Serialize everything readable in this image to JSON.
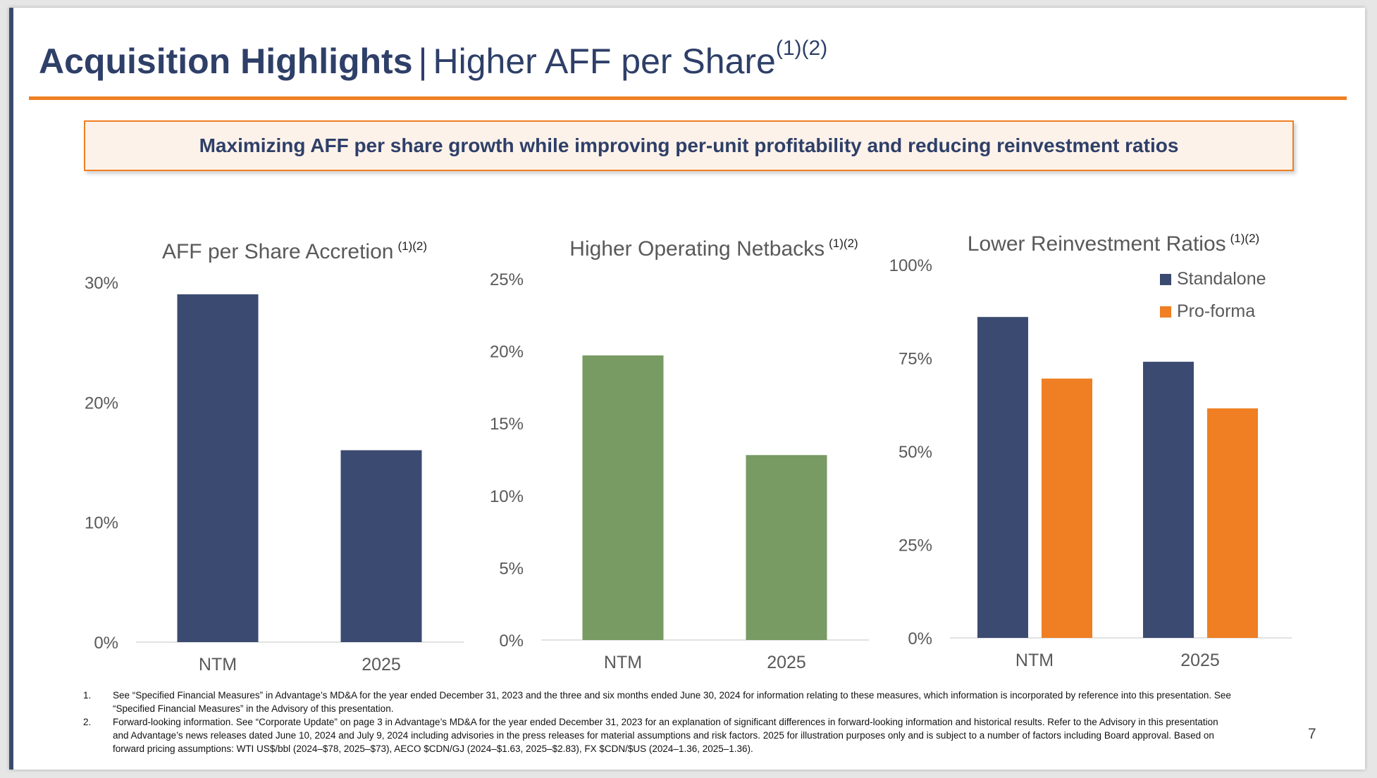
{
  "slide": {
    "title_bold": "Acquisition Highlights",
    "title_separator": "|",
    "title_light": "Higher AFF per Share",
    "title_sup": "(1)(2)",
    "banner": "Maximizing AFF per share growth while improving per-unit profitability and reducing reinvestment ratios",
    "page_number": "7"
  },
  "colors": {
    "navy": "#3b4a70",
    "green": "#789a63",
    "orange": "#ef7f22",
    "axis_text": "#595959"
  },
  "chart_data": [
    {
      "type": "bar",
      "title": "AFF per Share Accretion",
      "title_sup": "(1)(2)",
      "categories": [
        "NTM",
        "2025"
      ],
      "series": [
        {
          "values": [
            29,
            16
          ],
          "color": "#3b4a70"
        }
      ],
      "ylim": [
        0,
        30
      ],
      "yticks": [
        0,
        10,
        20,
        30
      ],
      "ytick_labels": [
        "0%",
        "10%",
        "20%",
        "30%"
      ],
      "grid": false
    },
    {
      "type": "bar",
      "title": "Higher Operating Netbacks",
      "title_sup": "(1)(2)",
      "categories": [
        "NTM",
        "2025"
      ],
      "series": [
        {
          "values": [
            19.7,
            12.8
          ],
          "color": "#789a63"
        }
      ],
      "ylim": [
        0,
        25
      ],
      "yticks": [
        0,
        5,
        10,
        15,
        20,
        25
      ],
      "ytick_labels": [
        "0%",
        "5%",
        "10%",
        "15%",
        "20%",
        "25%"
      ],
      "grid": false
    },
    {
      "type": "bar",
      "title": "Lower Reinvestment Ratios",
      "title_sup": "(1)(2)",
      "categories": [
        "NTM",
        "2025"
      ],
      "series": [
        {
          "name": "Standalone",
          "values": [
            86,
            74
          ],
          "color": "#3b4a70"
        },
        {
          "name": "Pro-forma",
          "values": [
            69.5,
            61.5
          ],
          "color": "#ef7f22"
        }
      ],
      "ylim": [
        0,
        100
      ],
      "yticks": [
        0,
        25,
        50,
        75,
        100
      ],
      "ytick_labels": [
        "0%",
        "25%",
        "50%",
        "75%",
        "100%"
      ],
      "legend": "top-right",
      "grid": false
    }
  ],
  "footnotes": [
    {
      "num": "1.",
      "text": "See “Specified Financial Measures” in Advantage’s MD&A for the year ended December 31, 2023 and the three and six months ended June 30, 2024 for information relating to these measures, which information is incorporated by reference into this presentation. See “Specified Financial Measures” in the Advisory of this presentation."
    },
    {
      "num": "2.",
      "text": "Forward-looking information. See “Corporate Update” on page 3 in Advantage’s MD&A for the year ended December 31, 2023 for an explanation of significant differences in forward-looking information and historical results. Refer to the Advisory in this presentation and Advantage’s news releases dated June 10, 2024 and July 9, 2024 including advisories in the press releases for material assumptions and risk factors. 2025 for illustration purposes only and is subject to a number of factors including Board approval. Based on forward pricing assumptions: WTI US$/bbl (2024–$78, 2025–$73), AECO $CDN/GJ (2024–$1.63, 2025–$2.83), FX $CDN/$US (2024–1.36, 2025–1.36)."
    }
  ]
}
